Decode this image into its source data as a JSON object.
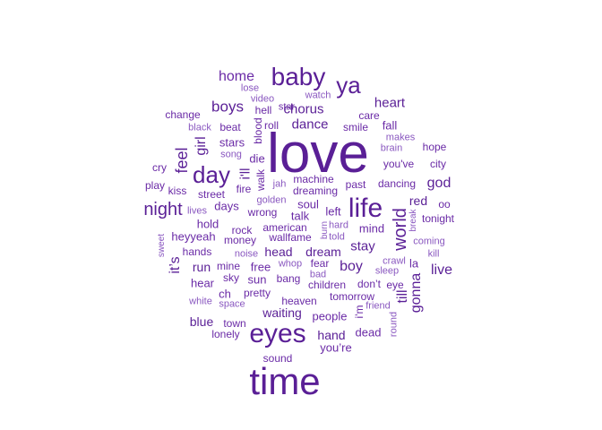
{
  "colors": {
    "c1": "#5a1f96",
    "c2": "#6a2aa6",
    "c3": "#8a58c0",
    "c4": "#a57cd2"
  },
  "words": {
    "love": "love",
    "time": "time",
    "eyes": "eyes",
    "baby": "baby",
    "ya": "ya",
    "life": "life",
    "day": "day",
    "night": "night",
    "world": "world",
    "feel": "feel",
    "home": "home",
    "boys": "boys",
    "heart": "heart",
    "chorus": "chorus",
    "dance": "dance",
    "girl": "girl",
    "ill": "i'll",
    "god": "god",
    "its": "it’s",
    "till": "till",
    "gonna": "gonna",
    "boy": "boy",
    "live": "live",
    "stay": "stay",
    "head": "head",
    "dream": "dream",
    "run": "run",
    "blue": "blue",
    "waiting": "waiting",
    "hand": "hand",
    "youre": "you’re",
    "people": "people",
    "lose": "lose",
    "watch": "watch",
    "video": "video",
    "hell": "hell",
    "star": "star",
    "change": "change",
    "care": "care",
    "fall": "fall",
    "black": "black",
    "beat": "beat",
    "roll": "roll",
    "blood": "blood",
    "smile": "smile",
    "makes": "makes",
    "brain": "brain",
    "hope": "hope",
    "stars": "stars",
    "song": "song",
    "die": "die",
    "youve": "you've",
    "city": "city",
    "cry": "cry",
    "walk": "walk",
    "machine": "machine",
    "past": "past",
    "dancing": "dancing",
    "play": "play",
    "kiss": "kiss",
    "street": "street",
    "fire": "fire",
    "jah": "jah",
    "dreaming": "dreaming",
    "golden": "golden",
    "soul": "soul",
    "red": "red",
    "oo": "oo",
    "lives": "lives",
    "days": "days",
    "wrong": "wrong",
    "talk": "talk",
    "left": "left",
    "break": "break",
    "tonight": "tonight",
    "hold": "hold",
    "rock": "rock",
    "american": "american",
    "burn": "burn",
    "hard": "hard",
    "mind": "mind",
    "sweet": "sweet",
    "heyyeah": "heyyeah",
    "money": "money",
    "wallfame": "wallfame",
    "told": "told",
    "coming": "coming",
    "hands": "hands",
    "noise": "noise",
    "kill": "kill",
    "mine": "mine",
    "free": "free",
    "whop": "whop",
    "fear": "fear",
    "crawl": "crawl",
    "la": "la",
    "sleep": "sleep",
    "hear": "hear",
    "sky": "sky",
    "sun": "sun",
    "bang": "bang",
    "bad": "bad",
    "dont": "don’t",
    "eye": "eye",
    "children": "children",
    "ch": "ch",
    "pretty": "pretty",
    "tomorrow": "tomorrow",
    "white": "white",
    "space": "space",
    "heaven": "heaven",
    "im": "i'm",
    "friend": "friend",
    "round": "round",
    "town": "town",
    "lonely": "lonely",
    "dead": "dead",
    "sound": "sound"
  }
}
